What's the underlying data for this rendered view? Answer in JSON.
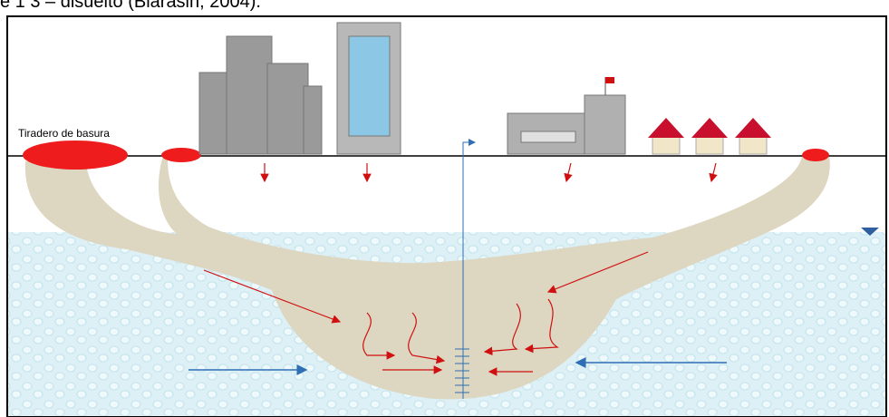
{
  "caption": "e 1 3 – disuelto (Blarasin, 2004).",
  "dump_label": "Tiradero de basura"
}
